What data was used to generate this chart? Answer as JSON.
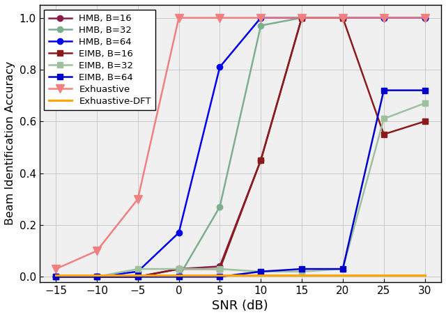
{
  "snr": [
    -15,
    -10,
    -5,
    0,
    5,
    10,
    15,
    20,
    25,
    30
  ],
  "series": [
    {
      "label": "HMB, B=16",
      "color": "#8B1A4A",
      "marker": "o",
      "markersize": 6,
      "linewidth": 1.8,
      "values": [
        0.0,
        0.0,
        0.0,
        0.03,
        0.04,
        0.45,
        1.0,
        1.0,
        1.0,
        1.0
      ]
    },
    {
      "label": "HMB, B=32",
      "color": "#7DAF8E",
      "marker": "o",
      "markersize": 6,
      "linewidth": 1.8,
      "values": [
        0.0,
        0.0,
        0.0,
        0.0,
        0.27,
        0.97,
        1.0,
        1.0,
        1.0,
        1.0
      ]
    },
    {
      "label": "HMB, B=64",
      "color": "#0000EE",
      "marker": "o",
      "markersize": 6,
      "linewidth": 1.8,
      "values": [
        0.0,
        0.0,
        0.02,
        0.17,
        0.81,
        1.0,
        1.0,
        1.0,
        1.0,
        1.0
      ]
    },
    {
      "label": "EIMB, B=16",
      "color": "#8B1A1A",
      "marker": "s",
      "markersize": 6,
      "linewidth": 1.8,
      "values": [
        0.0,
        0.0,
        0.0,
        0.03,
        0.03,
        0.45,
        1.0,
        1.0,
        0.55,
        0.6
      ]
    },
    {
      "label": "EIMB, B=32",
      "color": "#9DC09D",
      "marker": "s",
      "markersize": 6,
      "linewidth": 1.8,
      "values": [
        0.0,
        0.0,
        0.03,
        0.03,
        0.03,
        0.02,
        0.02,
        0.03,
        0.61,
        0.67
      ]
    },
    {
      "label": "EIMB, B=64",
      "color": "#0000CC",
      "marker": "s",
      "markersize": 6,
      "linewidth": 1.8,
      "values": [
        0.0,
        0.0,
        0.0,
        0.0,
        0.0,
        0.02,
        0.03,
        0.03,
        0.72,
        0.72
      ]
    },
    {
      "label": "Exhuastive",
      "color": "#F08080",
      "marker": "v",
      "markersize": 8,
      "linewidth": 1.8,
      "values": [
        0.03,
        0.1,
        0.3,
        1.0,
        1.0,
        1.0,
        1.0,
        1.0,
        1.0,
        1.0
      ]
    },
    {
      "label": "Exhuastive-DFT",
      "color": "#FFA500",
      "marker": null,
      "markersize": 6,
      "linewidth": 2.2,
      "values": [
        0.005,
        0.005,
        0.005,
        0.005,
        0.005,
        0.005,
        0.005,
        0.005,
        0.005,
        0.005
      ]
    }
  ],
  "xlabel": "SNR (dB)",
  "ylabel": "Beam Identification Accuracy",
  "xlim": [
    -17,
    32
  ],
  "ylim": [
    -0.02,
    1.05
  ],
  "xticks": [
    -15,
    -10,
    -5,
    0,
    5,
    10,
    15,
    20,
    25,
    30
  ],
  "yticks": [
    0.0,
    0.2,
    0.4,
    0.6,
    0.8,
    1.0
  ],
  "grid_color": "#C8C8C8",
  "bg_color": "#F0F0F0",
  "legend_loc": "upper left",
  "fig_width": 6.4,
  "fig_height": 4.55,
  "dpi": 100
}
